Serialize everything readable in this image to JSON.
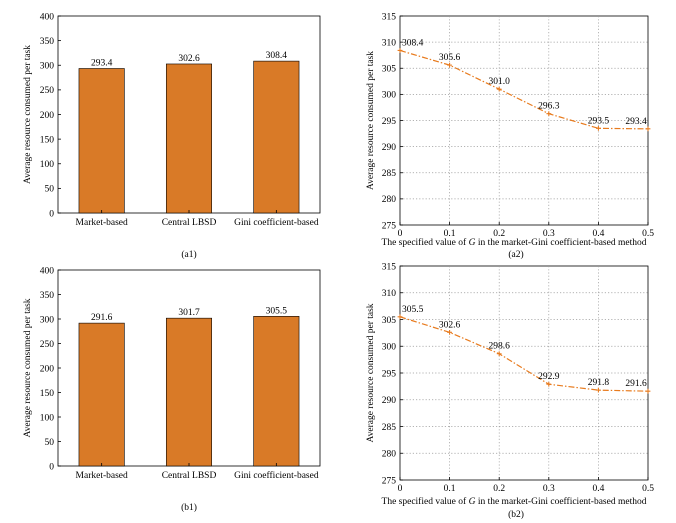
{
  "chart_data": [
    {
      "id": "a1",
      "type": "bar",
      "caption": "(a1)",
      "ylabel": "Average resource consumed per task",
      "xlabel": "",
      "ylim": [
        0,
        400
      ],
      "yticks": [
        0,
        50,
        100,
        150,
        200,
        250,
        300,
        350,
        400
      ],
      "categories": [
        "Market-based",
        "Central LBSD",
        "Gini coefficient-based"
      ],
      "values": [
        293.4,
        302.6,
        308.4
      ],
      "labels": [
        "293.4",
        "302.6",
        "308.4"
      ],
      "color": "#d97a27",
      "grid": false
    },
    {
      "id": "a2",
      "type": "line",
      "caption": "(a2)",
      "ylabel": "Average resource consumed per task",
      "xlabel_pre": "The specified value of ",
      "xlabel_var": "G",
      "xlabel_post": " in the market-Gini coefficient-based method",
      "xlim": [
        0,
        0.5
      ],
      "ylim": [
        275,
        315
      ],
      "xticks": [
        0,
        0.1,
        0.2,
        0.3,
        0.4,
        0.5
      ],
      "yticks": [
        275,
        280,
        285,
        290,
        295,
        300,
        305,
        310,
        315
      ],
      "x": [
        0,
        0.1,
        0.2,
        0.3,
        0.4,
        0.5
      ],
      "y": [
        308.4,
        305.6,
        301.0,
        296.3,
        293.5,
        293.4
      ],
      "labels": [
        "308.4",
        "305.6",
        "301.0",
        "296.3",
        "293.5",
        "293.4"
      ],
      "color": "#e87b1e",
      "grid": true
    },
    {
      "id": "b1",
      "type": "bar",
      "caption": "(b1)",
      "ylabel": "Average resource consumed per task",
      "xlabel": "",
      "ylim": [
        0,
        400
      ],
      "yticks": [
        0,
        50,
        100,
        150,
        200,
        250,
        300,
        350,
        400
      ],
      "categories": [
        "Market-based",
        "Central LBSD",
        "Gini coefficient-based"
      ],
      "values": [
        291.6,
        301.7,
        305.5
      ],
      "labels": [
        "291.6",
        "301.7",
        "305.5"
      ],
      "color": "#d97a27",
      "grid": false
    },
    {
      "id": "b2",
      "type": "line",
      "caption": "(b2)",
      "ylabel": "Average resource consumed per task",
      "xlabel_pre": "The specified value of ",
      "xlabel_var": "G",
      "xlabel_post": " in the market-Gini coefficient-based method",
      "xlim": [
        0,
        0.5
      ],
      "ylim": [
        275,
        315
      ],
      "xticks": [
        0,
        0.1,
        0.2,
        0.3,
        0.4,
        0.5
      ],
      "yticks": [
        275,
        280,
        285,
        290,
        295,
        300,
        305,
        310,
        315
      ],
      "x": [
        0,
        0.1,
        0.2,
        0.3,
        0.4,
        0.5
      ],
      "y": [
        305.5,
        302.6,
        298.6,
        292.9,
        291.8,
        291.6
      ],
      "labels": [
        "305.5",
        "302.6",
        "298.6",
        "292.9",
        "291.8",
        "291.6"
      ],
      "color": "#e87b1e",
      "grid": true
    }
  ]
}
